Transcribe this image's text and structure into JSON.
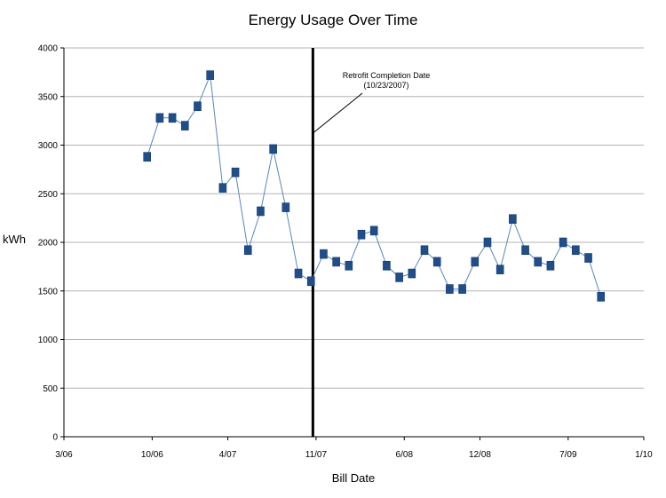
{
  "chart_data": {
    "type": "line",
    "title": "Energy Usage Over Time",
    "xlabel": "Bill Date",
    "ylabel": "kWh",
    "ylim": [
      0,
      4000
    ],
    "yticks": [
      "0",
      "500",
      "1000",
      "1500",
      "2000",
      "2500",
      "3000",
      "3500",
      "4000"
    ],
    "xlim_months": [
      0,
      46
    ],
    "xticks": [
      {
        "label": "3/06",
        "month": 0
      },
      {
        "label": "10/06",
        "month": 7
      },
      {
        "label": "4/07",
        "month": 13
      },
      {
        "label": "11/07",
        "month": 20
      },
      {
        "label": "6/08",
        "month": 27
      },
      {
        "label": "12/08",
        "month": 33
      },
      {
        "label": "7/09",
        "month": 40
      },
      {
        "label": "1/10",
        "month": 46
      }
    ],
    "grid": true,
    "line_color": "#5b86b8",
    "marker_color": "#1f4e8c",
    "series": [
      {
        "x": [
          6.6,
          7.6,
          8.6,
          9.6,
          10.6,
          11.6,
          12.6,
          13.6,
          14.6,
          15.6,
          16.6,
          17.6,
          18.6,
          19.6,
          20.6,
          21.6,
          22.6,
          23.6,
          24.6,
          25.6,
          26.6,
          27.6,
          28.6,
          29.6,
          30.6,
          31.6,
          32.6,
          33.6,
          34.6,
          35.6,
          36.6,
          37.6,
          38.6,
          39.6,
          40.6,
          41.6,
          42.6
        ],
        "values": [
          2880,
          3280,
          3280,
          3200,
          3400,
          3720,
          2560,
          2720,
          1920,
          2320,
          2960,
          2360,
          1680,
          1600,
          1880,
          1800,
          1760,
          2080,
          2120,
          1760,
          1640,
          1680,
          1920,
          1800,
          1520,
          1520,
          1800,
          2000,
          1720,
          2240,
          1920,
          1800,
          1760,
          2000,
          1920,
          1840,
          1440
        ]
      }
    ],
    "vertical_line": {
      "month": 19.75
    },
    "annotation": {
      "line1": "Retrofit Completion Date",
      "line2": "(10/23/2007)"
    }
  }
}
